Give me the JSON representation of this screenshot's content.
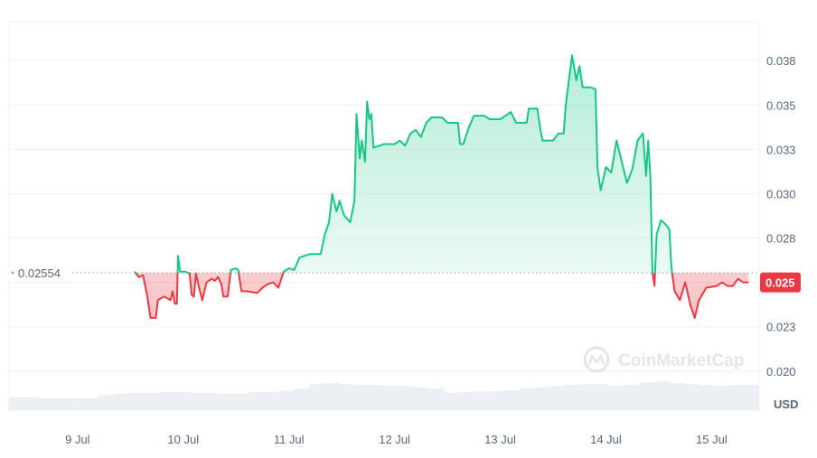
{
  "chart_data": {
    "type": "line",
    "watermark": "CoinMarketCap",
    "currency_label": "USD",
    "reference_price": 0.02554,
    "reference_label": "0.02554",
    "current_price_label": "0.025",
    "up_color": "#16c784",
    "down_color": "#ea3943",
    "x_ticks": [
      "9 Jul",
      "10 Jul",
      "11 Jul",
      "12 Jul",
      "13 Jul",
      "14 Jul",
      "15 Jul"
    ],
    "y_ticks": [
      "0.038",
      "0.035",
      "0.033",
      "0.030",
      "0.028",
      "0.025",
      "0.023",
      "0.020"
    ],
    "y_tick_values": [
      0.0375,
      0.035,
      0.0325,
      0.03,
      0.0275,
      0.025,
      0.0225,
      0.02
    ],
    "ylim": [
      0.0178,
      0.0397
    ],
    "x_unit": "days since 9 Jul 00:00",
    "series": [
      {
        "points": [
          [
            0.54,
            0.0256
          ],
          [
            0.58,
            0.0253
          ],
          [
            0.62,
            0.0254
          ],
          [
            0.66,
            0.0242
          ],
          [
            0.69,
            0.023
          ],
          [
            0.74,
            0.023
          ],
          [
            0.76,
            0.024
          ],
          [
            0.82,
            0.0242
          ],
          [
            0.88,
            0.024
          ],
          [
            0.9,
            0.0245
          ],
          [
            0.92,
            0.0238
          ],
          [
            0.94,
            0.0238
          ],
          [
            0.95,
            0.0265
          ],
          [
            0.97,
            0.0256
          ],
          [
            1.02,
            0.0256
          ],
          [
            1.06,
            0.0255
          ],
          [
            1.08,
            0.0243
          ],
          [
            1.1,
            0.0242
          ],
          [
            1.12,
            0.0255
          ],
          [
            1.15,
            0.0247
          ],
          [
            1.18,
            0.024
          ],
          [
            1.22,
            0.025
          ],
          [
            1.27,
            0.0252
          ],
          [
            1.3,
            0.0251
          ],
          [
            1.33,
            0.0253
          ],
          [
            1.36,
            0.0249
          ],
          [
            1.38,
            0.0242
          ],
          [
            1.42,
            0.0242
          ],
          [
            1.45,
            0.0257
          ],
          [
            1.5,
            0.0258
          ],
          [
            1.52,
            0.0257
          ],
          [
            1.55,
            0.0245
          ],
          [
            1.6,
            0.0245
          ],
          [
            1.7,
            0.0244
          ],
          [
            1.75,
            0.0247
          ],
          [
            1.8,
            0.0249
          ],
          [
            1.85,
            0.025
          ],
          [
            1.9,
            0.0247
          ],
          [
            1.95,
            0.0256
          ],
          [
            2.0,
            0.0258
          ],
          [
            2.05,
            0.0257
          ],
          [
            2.1,
            0.0264
          ],
          [
            2.2,
            0.0266
          ],
          [
            2.3,
            0.0266
          ],
          [
            2.34,
            0.0277
          ],
          [
            2.38,
            0.0284
          ],
          [
            2.41,
            0.03
          ],
          [
            2.45,
            0.029
          ],
          [
            2.48,
            0.0296
          ],
          [
            2.52,
            0.0288
          ],
          [
            2.58,
            0.0284
          ],
          [
            2.62,
            0.0296
          ],
          [
            2.64,
            0.0345
          ],
          [
            2.67,
            0.032
          ],
          [
            2.69,
            0.033
          ],
          [
            2.72,
            0.0318
          ],
          [
            2.74,
            0.0352
          ],
          [
            2.76,
            0.0342
          ],
          [
            2.78,
            0.0345
          ],
          [
            2.8,
            0.0326
          ],
          [
            2.9,
            0.0328
          ],
          [
            3.0,
            0.0328
          ],
          [
            3.05,
            0.033
          ],
          [
            3.1,
            0.0327
          ],
          [
            3.15,
            0.0334
          ],
          [
            3.2,
            0.0336
          ],
          [
            3.25,
            0.0332
          ],
          [
            3.3,
            0.034
          ],
          [
            3.35,
            0.0343
          ],
          [
            3.45,
            0.0343
          ],
          [
            3.5,
            0.034
          ],
          [
            3.6,
            0.034
          ],
          [
            3.62,
            0.0328
          ],
          [
            3.65,
            0.0328
          ],
          [
            3.7,
            0.0337
          ],
          [
            3.75,
            0.0344
          ],
          [
            3.85,
            0.0344
          ],
          [
            3.9,
            0.0342
          ],
          [
            4.0,
            0.0342
          ],
          [
            4.05,
            0.0344
          ],
          [
            4.1,
            0.0346
          ],
          [
            4.15,
            0.034
          ],
          [
            4.25,
            0.034
          ],
          [
            4.27,
            0.0348
          ],
          [
            4.35,
            0.0348
          ],
          [
            4.38,
            0.0336
          ],
          [
            4.4,
            0.033
          ],
          [
            4.5,
            0.033
          ],
          [
            4.55,
            0.0334
          ],
          [
            4.6,
            0.0334
          ],
          [
            4.62,
            0.035
          ],
          [
            4.68,
            0.0378
          ],
          [
            4.72,
            0.0364
          ],
          [
            4.75,
            0.0372
          ],
          [
            4.78,
            0.036
          ],
          [
            4.85,
            0.036
          ],
          [
            4.9,
            0.0359
          ],
          [
            4.92,
            0.0315
          ],
          [
            4.95,
            0.0302
          ],
          [
            5.0,
            0.0315
          ],
          [
            5.05,
            0.0312
          ],
          [
            5.1,
            0.033
          ],
          [
            5.15,
            0.0318
          ],
          [
            5.2,
            0.0306
          ],
          [
            5.25,
            0.0314
          ],
          [
            5.3,
            0.033
          ],
          [
            5.35,
            0.0334
          ],
          [
            5.38,
            0.031
          ],
          [
            5.4,
            0.033
          ],
          [
            5.42,
            0.031
          ],
          [
            5.44,
            0.0256
          ],
          [
            5.46,
            0.0248
          ],
          [
            5.48,
            0.0277
          ],
          [
            5.52,
            0.0285
          ],
          [
            5.56,
            0.0283
          ],
          [
            5.6,
            0.028
          ],
          [
            5.62,
            0.0258
          ],
          [
            5.65,
            0.0245
          ],
          [
            5.7,
            0.024
          ],
          [
            5.75,
            0.025
          ],
          [
            5.8,
            0.0237
          ],
          [
            5.84,
            0.023
          ],
          [
            5.88,
            0.024
          ],
          [
            5.95,
            0.0247
          ],
          [
            6.05,
            0.0248
          ],
          [
            6.1,
            0.025
          ],
          [
            6.15,
            0.0248
          ],
          [
            6.2,
            0.0248
          ],
          [
            6.25,
            0.0252
          ],
          [
            6.3,
            0.025
          ],
          [
            6.35,
            0.025
          ]
        ]
      }
    ],
    "volume_rel": [
      0.3,
      0.3,
      0.28,
      0.28,
      0.27,
      0.28,
      0.35,
      0.38,
      0.4,
      0.4,
      0.42,
      0.42,
      0.4,
      0.4,
      0.38,
      0.38,
      0.42,
      0.42,
      0.45,
      0.5,
      0.6,
      0.62,
      0.6,
      0.58,
      0.58,
      0.56,
      0.55,
      0.52,
      0.5,
      0.4,
      0.42,
      0.43,
      0.44,
      0.46,
      0.5,
      0.52,
      0.55,
      0.58,
      0.6,
      0.6,
      0.56,
      0.58,
      0.64,
      0.66,
      0.62,
      0.6,
      0.58,
      0.56,
      0.58,
      0.58
    ],
    "xlim": [
      -0.05,
      6.45
    ]
  }
}
